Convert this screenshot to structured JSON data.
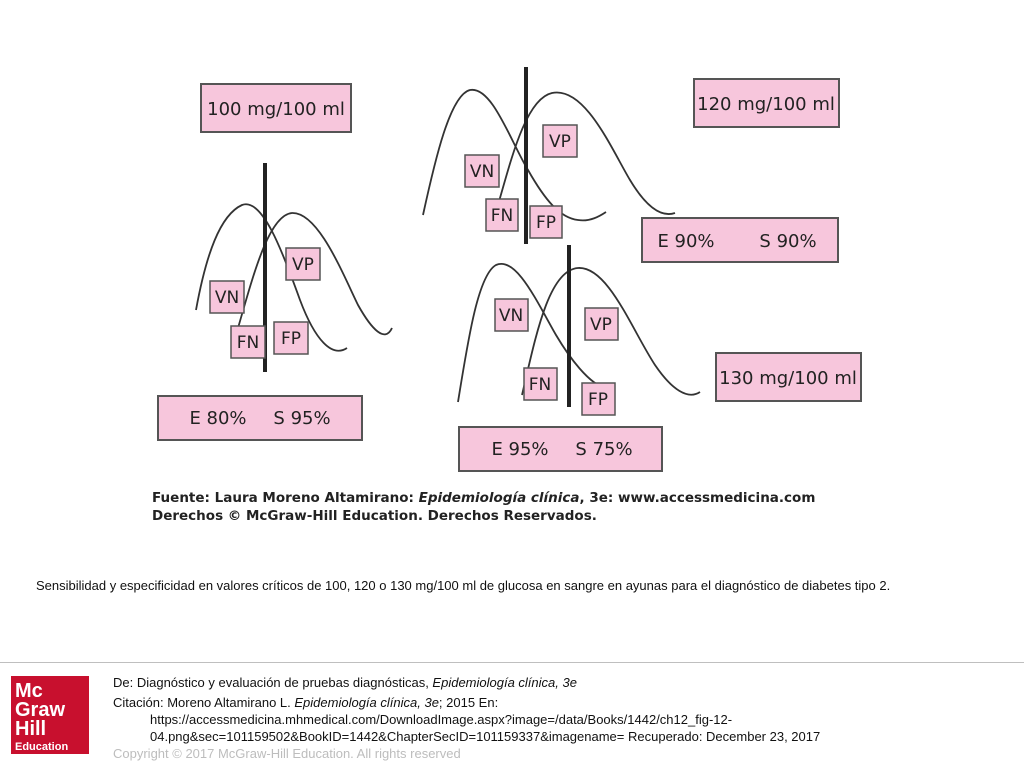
{
  "figure": {
    "panels": {
      "p100": {
        "threshold": "100 mg/100 ml",
        "vn": "VN",
        "vp": "VP",
        "fn": "FN",
        "fp": "FP",
        "spec": "E 80%",
        "sens": "S 95%"
      },
      "p120": {
        "threshold": "120 mg/100 ml",
        "vn": "VN",
        "vp": "VP",
        "fn": "FN",
        "fp": "FP",
        "spec": "E 90%",
        "sens": "S 90%"
      },
      "p130": {
        "threshold": "130 mg/100 ml",
        "vn": "VN",
        "vp": "VP",
        "fn": "FN",
        "fp": "FP",
        "spec": "E 95%",
        "sens": "S 75%"
      }
    },
    "source": {
      "line1_prefix": "Fuente: Laura Moreno Altamirano: ",
      "line1_title": "Epidemiología clínica",
      "line1_suffix": ", 3e: www.accessmedicina.com",
      "line2": "Derechos © McGraw-Hill Education. Derechos Reservados."
    },
    "colors": {
      "box_fill": "#f7c6dc",
      "box_stroke": "#555555"
    }
  },
  "caption": "Sensibilidad y especificidad en valores críticos de 100, 120 o 130 mg/100 ml de glucosa en sangre en ayunas para el diagnóstico de diabetes tipo 2.",
  "citation": {
    "from_label": "De: ",
    "from_text": "Diagnóstico y evaluación de pruebas diagnósticas, ",
    "from_book": "Epidemiología clínica, 3e",
    "cite_label": "Citación: ",
    "cite_author": "Moreno Altamirano L. ",
    "cite_book": "Epidemiología clínica, 3e",
    "cite_rest": "; 2015 En:",
    "url_line1": "https://accessmedicina.mhmedical.com/DownloadImage.aspx?image=/data/Books/1442/ch12_fig-12-",
    "url_line2": "04.png&sec=101159502&BookID=1442&ChapterSecID=101159337&imagename= Recuperado: December 23, 2017",
    "copyright": "Copyright © 2017 McGraw-Hill Education. All rights reserved"
  },
  "logo": {
    "line1": "Mc",
    "line2": "Graw",
    "line3": "Hill",
    "line4": "Education",
    "color": "#c8102e"
  }
}
